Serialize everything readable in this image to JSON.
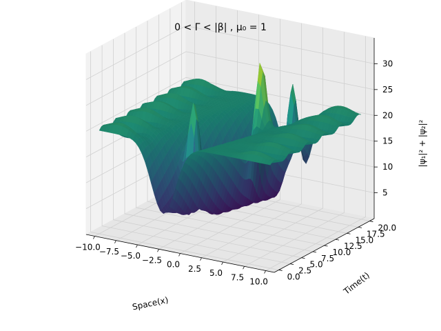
{
  "chart_data": {
    "type": "surface",
    "title": "0 < Γ < |β| ,  μ₀ = 1",
    "xlabel": "Space(x)",
    "ylabel": "Time(t)",
    "zlabel": "|ψ₁|² + |ψ₂|²",
    "xlim": [
      -11,
      11
    ],
    "ylim": [
      -1,
      21
    ],
    "zlim": [
      0,
      35
    ],
    "x_ticks": [
      -10.0,
      -7.5,
      -5.0,
      -2.5,
      0.0,
      2.5,
      5.0,
      7.5,
      10.0
    ],
    "x_tick_labels": [
      "−10.0",
      "−7.5",
      "−5.0",
      "−2.5",
      "0.0",
      "2.5",
      "5.0",
      "7.5",
      "10.0"
    ],
    "y_ticks": [
      0.0,
      2.5,
      5.0,
      7.5,
      10.0,
      12.5,
      15.0,
      17.5,
      20.0
    ],
    "y_tick_labels": [
      "0.0",
      "2.5",
      "5.0",
      "7.5",
      "10.0",
      "12.5",
      "15.0",
      "17.5",
      "20.0"
    ],
    "z_ticks": [
      5,
      10,
      15,
      20,
      25,
      30
    ],
    "z_tick_labels": [
      "5",
      "10",
      "15",
      "20",
      "25",
      "30"
    ],
    "colormap": "viridis",
    "grid": true,
    "peaks": [
      {
        "x": -2.0,
        "t": 6.0,
        "z": 30
      },
      {
        "x": 2.5,
        "t": 12.0,
        "z": 30
      },
      {
        "x": 2.5,
        "t": 19.0,
        "z": 33
      }
    ],
    "background_level": 20
  }
}
